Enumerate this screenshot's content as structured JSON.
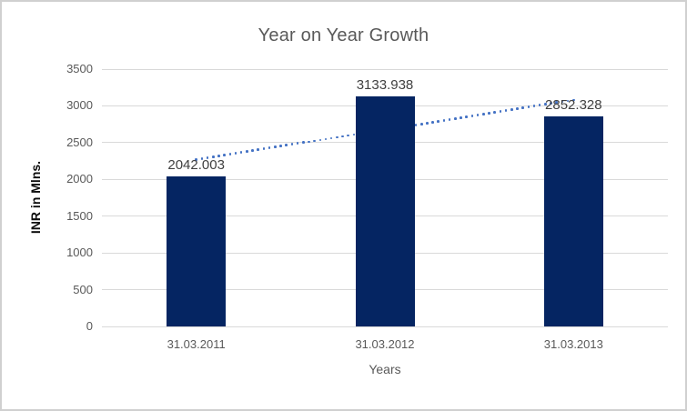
{
  "chart_data": {
    "type": "bar",
    "title": "Year on Year Growth",
    "xlabel": "Years",
    "ylabel": "INR in Mlns.",
    "categories": [
      "31.03.2011",
      "31.03.2012",
      "31.03.2013"
    ],
    "values": [
      2042.003,
      3133.938,
      2852.328
    ],
    "data_labels": [
      "2042.003",
      "3133.938",
      "2852.328"
    ],
    "ylim": [
      0,
      3500
    ],
    "yticks": [
      0,
      500,
      1000,
      1500,
      2000,
      2500,
      3000,
      3500
    ],
    "grid": true,
    "legend": "none",
    "trendline": {
      "visible": true,
      "fit": "linear",
      "style": "dotted"
    },
    "colors": {
      "bar": "#052562",
      "trendline": "#4472c4",
      "gridline": "#d9d9d9",
      "axis_text": "#595959",
      "title_text": "#595959",
      "data_label_text": "#404040",
      "page_border": "#d0d0d0"
    }
  }
}
